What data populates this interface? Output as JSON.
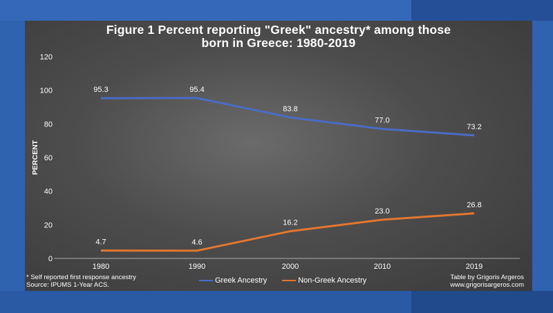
{
  "title_line1": "Figure 1   Percent reporting \"Greek\" ancestry* among those",
  "title_line2": "born in Greece: 1980-2019",
  "footnote_left": [
    "* Self reported first response ancestry",
    "Source: IPUMS 1-Year ACS."
  ],
  "footnote_right": [
    "Table by Grigoris Argeros",
    "www.grigorisargeros.com"
  ],
  "colors": {
    "greek": "#4a6cc6",
    "non_greek": "#e3772f",
    "background_panel": "#4a4a4a",
    "page_blue": "#2f63b0"
  },
  "chart_data": {
    "type": "line",
    "title": "Figure 1   Percent reporting \"Greek\" ancestry* among those born in Greece: 1980-2019",
    "xlabel": "",
    "ylabel": "PERCENT",
    "categories": [
      "1980",
      "1990",
      "2000",
      "2010",
      "2019"
    ],
    "ylim": [
      0,
      120
    ],
    "yticks": [
      "0",
      "20",
      "40",
      "60",
      "80",
      "100",
      "120"
    ],
    "grid": false,
    "legend_position": "bottom",
    "series": [
      {
        "name": "Greek Ancestry",
        "values": [
          95.3,
          95.4,
          83.8,
          77.0,
          73.2
        ],
        "labels": [
          "95.3",
          "95.4",
          "83.8",
          "77.0",
          "73.2"
        ],
        "color": "#4a6cc6"
      },
      {
        "name": "Non-Greek Ancestry",
        "values": [
          4.7,
          4.6,
          16.2,
          23.0,
          26.8
        ],
        "labels": [
          "4.7",
          "4.6",
          "16.2",
          "23.0",
          "26.8"
        ],
        "color": "#e3772f"
      }
    ]
  }
}
